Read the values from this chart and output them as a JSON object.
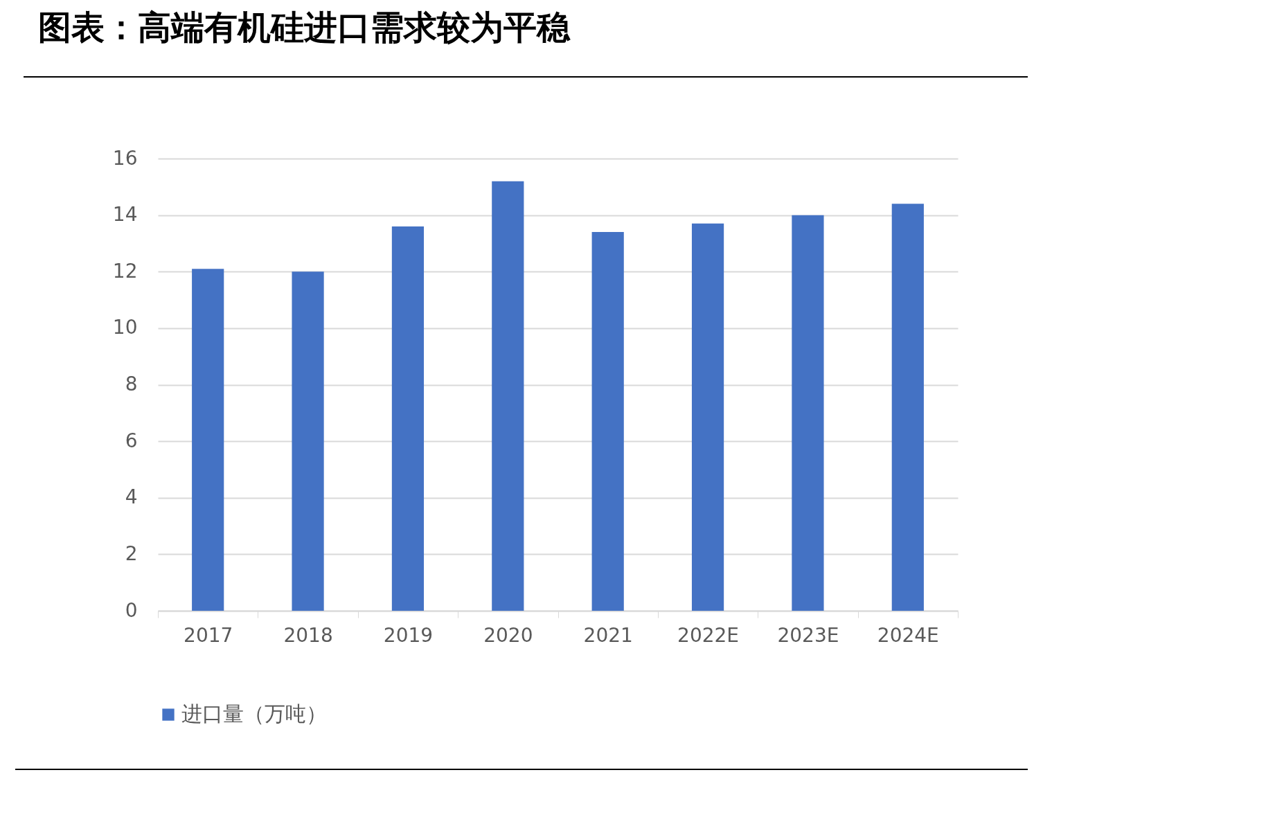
{
  "chart_data": {
    "type": "bar",
    "title": "图表：高端有机硅进口需求较为平稳",
    "categories": [
      "2017",
      "2018",
      "2019",
      "2020",
      "2021",
      "2022E",
      "2023E",
      "2024E"
    ],
    "series": [
      {
        "name": "进口量（万吨）",
        "color": "#4472c4",
        "values": [
          12.1,
          12.0,
          13.6,
          15.2,
          13.4,
          13.7,
          14.0,
          14.4
        ]
      }
    ],
    "ylim": [
      0,
      16
    ],
    "yticks": [
      0,
      2,
      4,
      6,
      8,
      10,
      12,
      14,
      16
    ],
    "grid": "y",
    "legend": "bottom"
  }
}
